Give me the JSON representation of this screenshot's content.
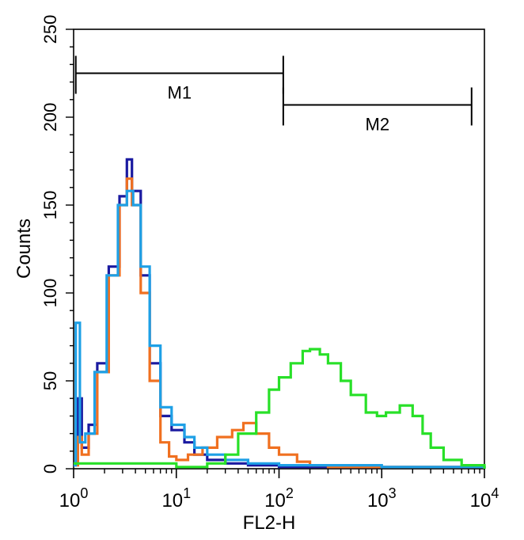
{
  "chart_data": {
    "type": "line",
    "subtype": "flow-cytometry-histogram",
    "xlabel": "FL2-H",
    "ylabel": "Counts",
    "xscale": "log",
    "xlim": [
      1,
      10000
    ],
    "ylim": [
      0,
      250
    ],
    "yticks": [
      0,
      50,
      100,
      150,
      200,
      250
    ],
    "xticks": [
      {
        "base": "10",
        "exp": "0",
        "value": 1
      },
      {
        "base": "10",
        "exp": "1",
        "value": 10
      },
      {
        "base": "10",
        "exp": "2",
        "value": 100
      },
      {
        "base": "10",
        "exp": "3",
        "value": 1000
      },
      {
        "base": "10",
        "exp": "4",
        "value": 10000
      }
    ],
    "markers": [
      {
        "name": "M1",
        "from": 1.05,
        "to": 110,
        "level": 225
      },
      {
        "name": "M2",
        "from": 110,
        "to": 7500,
        "level": 207
      }
    ],
    "series": [
      {
        "name": "navy",
        "color": "#1a1aa0",
        "points": [
          [
            1,
            3
          ],
          [
            1.1,
            40
          ],
          [
            1.2,
            12
          ],
          [
            1.4,
            25
          ],
          [
            1.7,
            60
          ],
          [
            2.2,
            115
          ],
          [
            2.8,
            155
          ],
          [
            3.3,
            176
          ],
          [
            3.7,
            158
          ],
          [
            4.5,
            110
          ],
          [
            5.5,
            60
          ],
          [
            7,
            30
          ],
          [
            9,
            22
          ],
          [
            12,
            15
          ],
          [
            15,
            8
          ],
          [
            20,
            5
          ],
          [
            30,
            3
          ],
          [
            50,
            2
          ],
          [
            100,
            1
          ],
          [
            1000,
            1
          ],
          [
            10000,
            0
          ]
        ]
      },
      {
        "name": "orange",
        "color": "#f07020",
        "points": [
          [
            1,
            2
          ],
          [
            1.1,
            18
          ],
          [
            1.2,
            8
          ],
          [
            1.4,
            20
          ],
          [
            1.7,
            55
          ],
          [
            2.2,
            110
          ],
          [
            2.8,
            150
          ],
          [
            3.3,
            165
          ],
          [
            3.7,
            150
          ],
          [
            4.5,
            100
          ],
          [
            5.5,
            50
          ],
          [
            7,
            15
          ],
          [
            8.5,
            7
          ],
          [
            10,
            5
          ],
          [
            13,
            8
          ],
          [
            18,
            12
          ],
          [
            25,
            18
          ],
          [
            35,
            22
          ],
          [
            45,
            26
          ],
          [
            60,
            20
          ],
          [
            80,
            12
          ],
          [
            100,
            8
          ],
          [
            150,
            4
          ],
          [
            200,
            2
          ],
          [
            300,
            1
          ],
          [
            10000,
            0
          ]
        ]
      },
      {
        "name": "sky-blue",
        "color": "#1ea0e6",
        "points": [
          [
            1,
            2
          ],
          [
            1.05,
            83
          ],
          [
            1.15,
            15
          ],
          [
            1.3,
            20
          ],
          [
            1.6,
            55
          ],
          [
            2.1,
            110
          ],
          [
            2.7,
            150
          ],
          [
            3.3,
            158
          ],
          [
            3.8,
            150
          ],
          [
            4.5,
            115
          ],
          [
            5.5,
            70
          ],
          [
            7,
            35
          ],
          [
            9,
            25
          ],
          [
            12,
            18
          ],
          [
            15,
            12
          ],
          [
            20,
            8
          ],
          [
            30,
            5
          ],
          [
            50,
            3
          ],
          [
            100,
            2
          ],
          [
            1000,
            1
          ],
          [
            10000,
            0
          ]
        ]
      },
      {
        "name": "green",
        "color": "#28e028",
        "points": [
          [
            1,
            3
          ],
          [
            10,
            1
          ],
          [
            20,
            3
          ],
          [
            30,
            8
          ],
          [
            40,
            20
          ],
          [
            60,
            32
          ],
          [
            80,
            45
          ],
          [
            100,
            52
          ],
          [
            130,
            60
          ],
          [
            170,
            67
          ],
          [
            200,
            68
          ],
          [
            250,
            65
          ],
          [
            300,
            60
          ],
          [
            400,
            50
          ],
          [
            500,
            42
          ],
          [
            700,
            32
          ],
          [
            900,
            30
          ],
          [
            1100,
            32
          ],
          [
            1500,
            36
          ],
          [
            2000,
            30
          ],
          [
            2500,
            20
          ],
          [
            3000,
            12
          ],
          [
            4000,
            5
          ],
          [
            6000,
            2
          ],
          [
            10000,
            0
          ]
        ]
      }
    ]
  }
}
